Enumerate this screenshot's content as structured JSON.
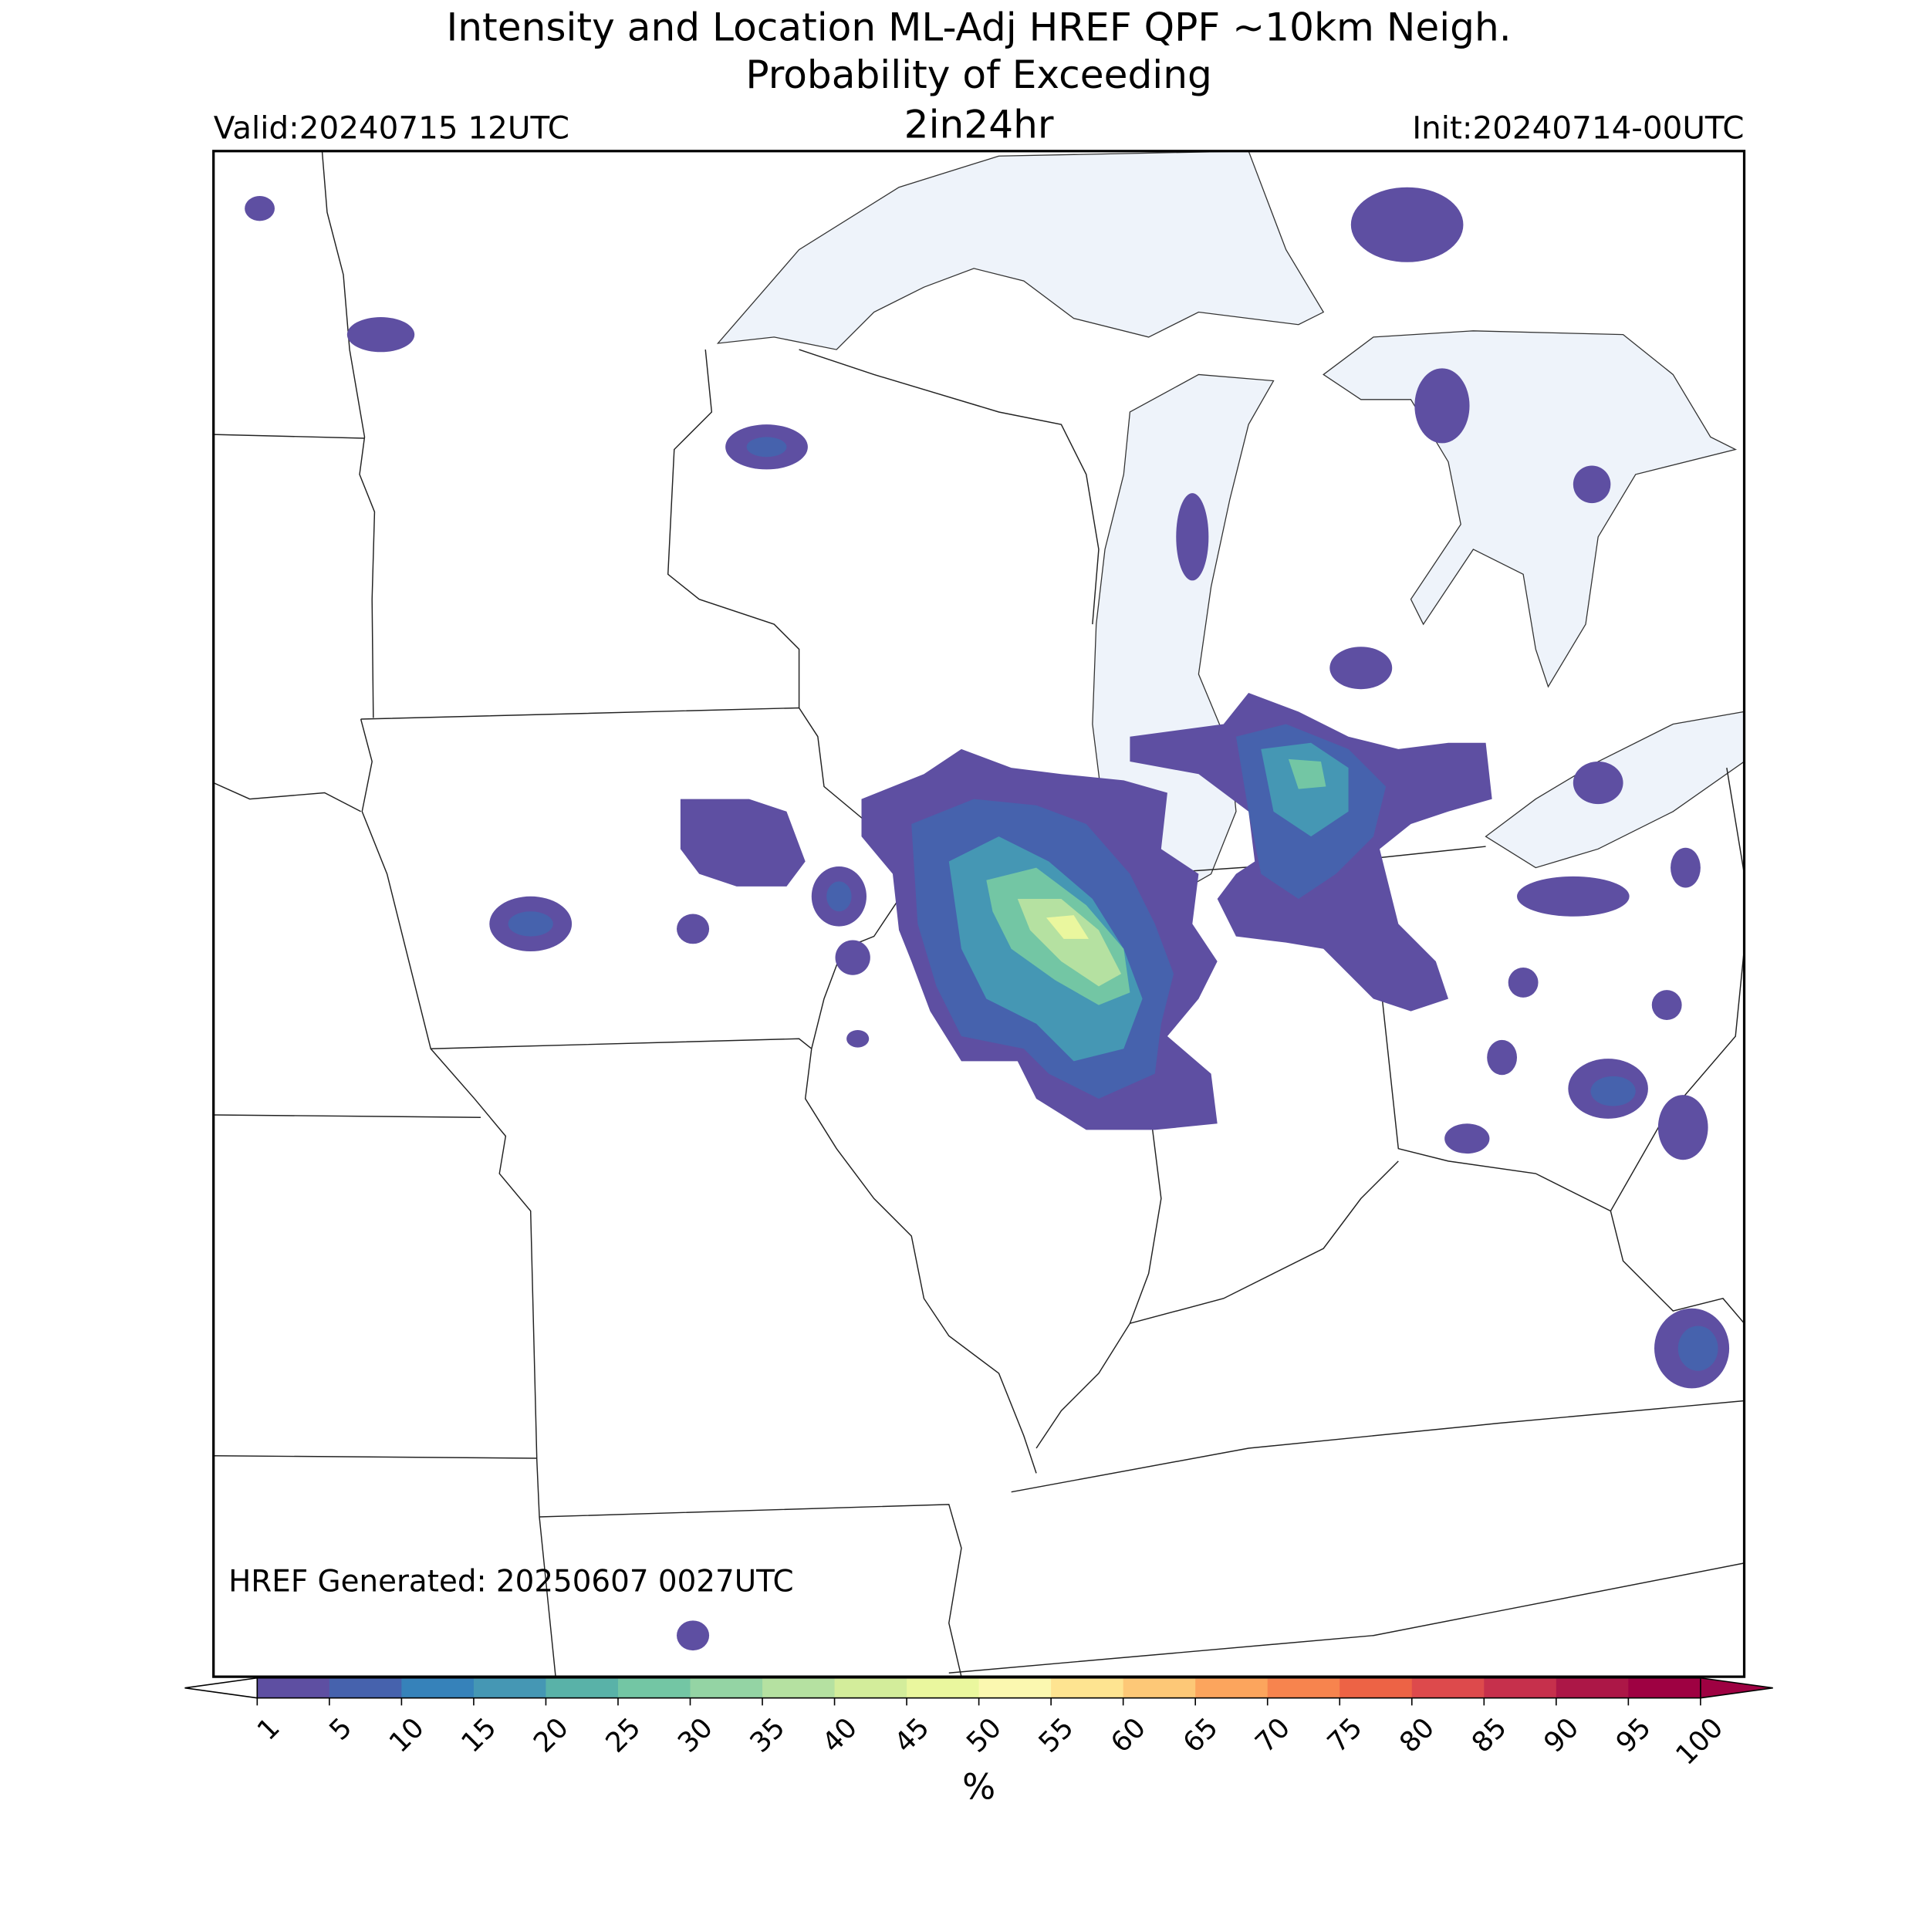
{
  "header": {
    "title_line_1": "Intensity and Location ML-Adj HREF QPF ~10km Neigh.",
    "title_line_2": "Probability of Exceeding",
    "threshold": "2in24hr",
    "valid": "Valid:20240715 12UTC",
    "init": "Init:20240714-00UTC"
  },
  "footer": {
    "generated": "HREF Generated: 20250607 0027UTC"
  },
  "colorbar": {
    "label": "%",
    "ticks": [
      1,
      5,
      10,
      15,
      20,
      25,
      30,
      35,
      40,
      45,
      50,
      55,
      60,
      65,
      70,
      75,
      80,
      85,
      90,
      95,
      100
    ],
    "colors": [
      "#5e4fa2",
      "#4662ad",
      "#3682ba",
      "#4597b4",
      "#59b2a8",
      "#73c6a4",
      "#94d4a4",
      "#b5e1a1",
      "#d3ed9b",
      "#eaf79e",
      "#fbf8b0",
      "#fee491",
      "#fdc877",
      "#fca55d",
      "#f7844e",
      "#ed6345",
      "#dd4a4c",
      "#c6304c",
      "#ac1747",
      "#9e0142"
    ],
    "under_color": "#ffffff",
    "over_color": "#9e0142"
  }
}
